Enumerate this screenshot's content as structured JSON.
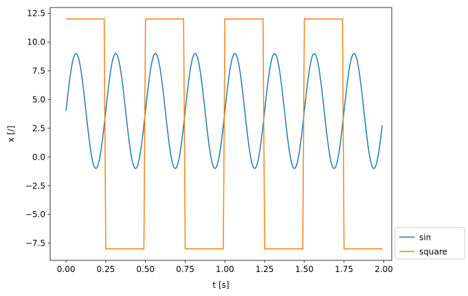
{
  "chart_data": {
    "type": "line",
    "title": "",
    "xlabel": "t [s]",
    "ylabel": "x [/]",
    "xlim": [
      -0.1,
      2.05
    ],
    "ylim": [
      -9.0,
      13.0
    ],
    "x_ticks": [
      0.0,
      0.25,
      0.5,
      0.75,
      1.0,
      1.25,
      1.5,
      1.75,
      2.0
    ],
    "x_tick_labels": [
      "0.00",
      "0.25",
      "0.50",
      "0.75",
      "1.00",
      "1.25",
      "1.50",
      "1.75",
      "2.00"
    ],
    "y_ticks": [
      -7.5,
      -5.0,
      -2.5,
      0.0,
      2.5,
      5.0,
      7.5,
      10.0,
      12.5
    ],
    "y_tick_labels": [
      "−7.5",
      "−5.0",
      "−2.5",
      "0.0",
      "2.5",
      "5.0",
      "7.5",
      "10.0",
      "12.5"
    ],
    "grid": false,
    "legend_position": "outside-bottom-right",
    "series": [
      {
        "name": "sin",
        "color": "#1f77b4",
        "function": "4 + 5*sin(2*pi*4*t)",
        "t_range": [
          0.0,
          1.99
        ],
        "t_step": 0.001
      },
      {
        "name": "square",
        "color": "#ff7f0e",
        "function": "2 + 10*square(2*pi*2*t)",
        "t_range": [
          0.0,
          1.99
        ],
        "high": 12.0,
        "low": -8.0,
        "transitions": [
          0.25,
          0.5,
          0.75,
          1.0,
          1.25,
          1.5,
          1.75
        ]
      }
    ]
  }
}
